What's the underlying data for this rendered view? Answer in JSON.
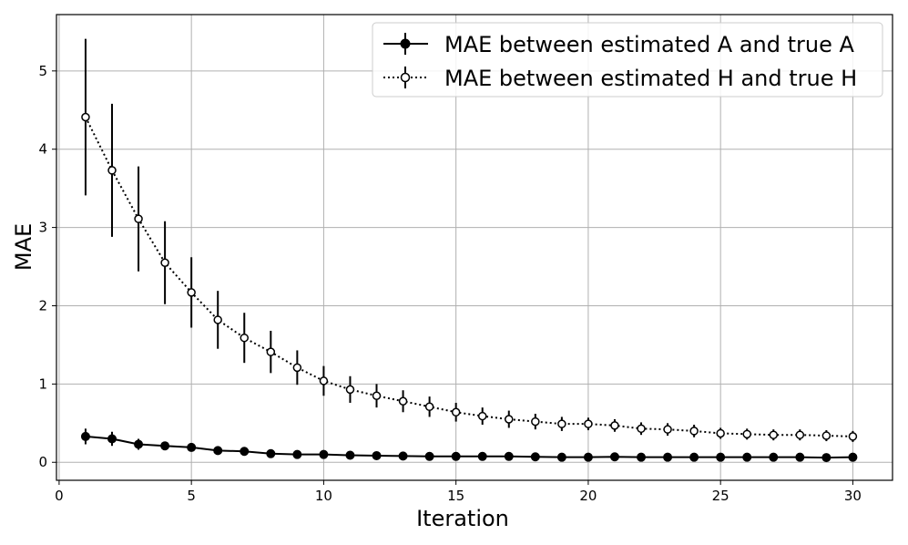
{
  "chart_data": {
    "type": "line",
    "title": "",
    "xlabel": "Iteration",
    "ylabel": "MAE",
    "xlim": [
      -0.1,
      31.5
    ],
    "ylim": [
      -0.23,
      5.72
    ],
    "xticks": [
      0,
      5,
      10,
      15,
      20,
      25,
      30
    ],
    "yticks": [
      0,
      1,
      2,
      3,
      4,
      5
    ],
    "grid": true,
    "legend_position": "top-right",
    "x": [
      1,
      2,
      3,
      4,
      5,
      6,
      7,
      8,
      9,
      10,
      11,
      12,
      13,
      14,
      15,
      16,
      17,
      18,
      19,
      20,
      21,
      22,
      23,
      24,
      25,
      26,
      27,
      28,
      29,
      30
    ],
    "series": [
      {
        "name": "MAE between estimated A and true A",
        "line_style": "solid",
        "marker": "filled-circle",
        "values": [
          0.33,
          0.3,
          0.23,
          0.21,
          0.19,
          0.15,
          0.14,
          0.11,
          0.1,
          0.1,
          0.09,
          0.085,
          0.08,
          0.075,
          0.075,
          0.075,
          0.075,
          0.07,
          0.065,
          0.065,
          0.07,
          0.065,
          0.065,
          0.065,
          0.065,
          0.065,
          0.065,
          0.065,
          0.06,
          0.065
        ],
        "errors": [
          0.1,
          0.09,
          0.07,
          0.04,
          0.03,
          0.03,
          0.02,
          0.02,
          0.02,
          0.02,
          0.02,
          0.02,
          0.02,
          0.015,
          0.015,
          0.015,
          0.015,
          0.015,
          0.015,
          0.015,
          0.015,
          0.015,
          0.015,
          0.015,
          0.015,
          0.015,
          0.015,
          0.015,
          0.015,
          0.015
        ]
      },
      {
        "name": "MAE between estimated H and true H",
        "line_style": "dotted",
        "marker": "open-circle",
        "values": [
          4.41,
          3.73,
          3.11,
          2.55,
          2.17,
          1.82,
          1.59,
          1.41,
          1.21,
          1.04,
          0.93,
          0.85,
          0.78,
          0.71,
          0.64,
          0.59,
          0.55,
          0.52,
          0.49,
          0.49,
          0.47,
          0.43,
          0.42,
          0.4,
          0.37,
          0.36,
          0.35,
          0.35,
          0.34,
          0.33
        ],
        "errors": [
          1.0,
          0.85,
          0.67,
          0.53,
          0.45,
          0.37,
          0.32,
          0.27,
          0.22,
          0.19,
          0.17,
          0.15,
          0.14,
          0.13,
          0.12,
          0.11,
          0.11,
          0.1,
          0.09,
          0.08,
          0.08,
          0.08,
          0.08,
          0.08,
          0.07,
          0.07,
          0.07,
          0.07,
          0.07,
          0.07
        ]
      }
    ]
  }
}
